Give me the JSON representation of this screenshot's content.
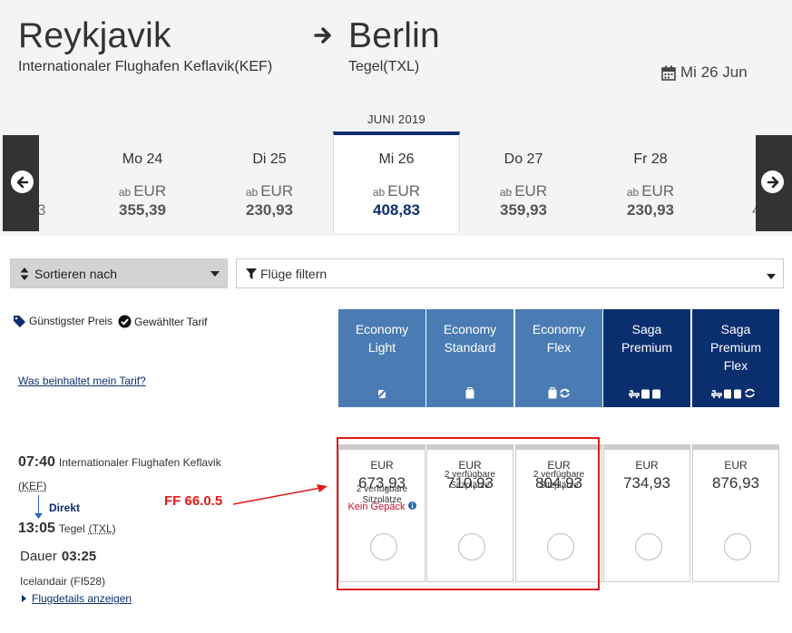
{
  "route": {
    "origin_city": "Reykjavik",
    "origin_airport": "Internationaler Flughafen Keflavik(KEF)",
    "destination_city": "Berlin",
    "destination_airport": "Tegel(TXL)",
    "date": "Mi 26 Jun"
  },
  "carousel": {
    "month": "JUNI 2019",
    "left_edge_fragment": "3",
    "right_edge_fragment": "4",
    "days": [
      {
        "label": "Mo 24",
        "ab": "ab",
        "currency": "EUR",
        "price": "355,39",
        "selected": false
      },
      {
        "label": "Di 25",
        "ab": "ab",
        "currency": "EUR",
        "price": "230,93",
        "selected": false
      },
      {
        "label": "Mi 26",
        "ab": "ab",
        "currency": "EUR",
        "price": "408,83",
        "selected": true
      },
      {
        "label": "Do 27",
        "ab": "ab",
        "currency": "EUR",
        "price": "359,93",
        "selected": false
      },
      {
        "label": "Fr 28",
        "ab": "ab",
        "currency": "EUR",
        "price": "230,93",
        "selected": false
      }
    ]
  },
  "controls": {
    "sort_label": "Sortieren nach",
    "filter_label": "Flüge filtern"
  },
  "legend": {
    "cheapest": "Günstigster Preis",
    "selected": "Gewählter Tarif",
    "tarif_link": "Was beinhaltet mein Tarif?"
  },
  "fares": [
    {
      "name": "Economy\nLight",
      "icons": "⊘",
      "style": "light"
    },
    {
      "name": "Economy\nStandard",
      "icons": "▮",
      "style": "light"
    },
    {
      "name": "Economy\nFlex",
      "icons": "▮⟳",
      "style": "light"
    },
    {
      "name": "Saga\nPremium",
      "icons": "⑂▮▮",
      "style": "dark"
    },
    {
      "name": "Saga\nPremium\nFlex",
      "icons": "⑂▮▮⟳",
      "style": "dark"
    }
  ],
  "flight": {
    "dep_time": "07:40",
    "dep_airport": "Internationaler Flughafen Keflavik",
    "dep_code": "(KEF)",
    "stop_type": "Direkt",
    "arr_time": "13:05",
    "arr_airport": "Tegel",
    "arr_code": "(TXL)",
    "duration_label": "Dauer",
    "duration": "03:25",
    "carrier": "Icelandair (FI528)",
    "details_link": "Flugdetails anzeigen"
  },
  "prices": [
    {
      "currency": "EUR",
      "amount": "673,93",
      "availability": "2 verfügbare Sitzplätze",
      "note": "Kein Gepäck"
    },
    {
      "currency": "EUR",
      "amount": "710,93",
      "availability": "2 verfügbare Sitzplätze",
      "note": ""
    },
    {
      "currency": "EUR",
      "amount": "804,93",
      "availability": "2 verfügbare Sitzplätze",
      "note": ""
    },
    {
      "currency": "EUR",
      "amount": "734,93",
      "availability": "",
      "note": ""
    },
    {
      "currency": "EUR",
      "amount": "876,93",
      "availability": "",
      "note": ""
    }
  ],
  "annotation": {
    "label": "FF 66.0.5",
    "color": "#e01b1b"
  },
  "colors": {
    "light_fare": "#4a7cb3",
    "dark_fare": "#0b2e6e",
    "header_bg": "#f4f4f4"
  }
}
